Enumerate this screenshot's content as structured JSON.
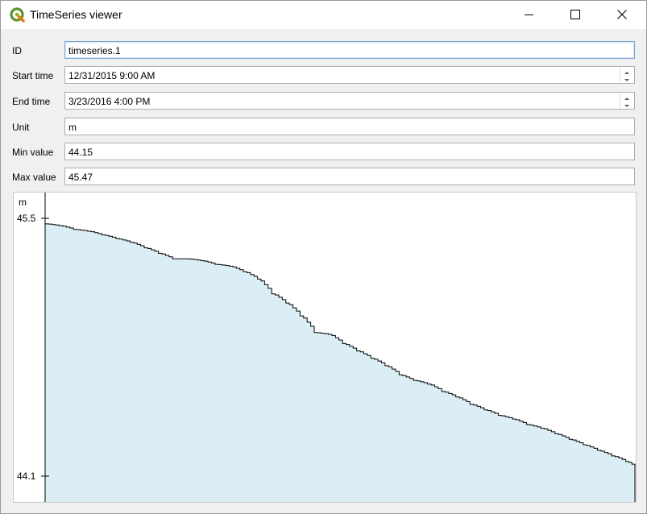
{
  "window": {
    "title": "TimeSeries viewer",
    "icon": "qgis-logo-icon",
    "controls": [
      "minimize-icon",
      "maximize-icon",
      "close-icon"
    ]
  },
  "form": {
    "id": {
      "label": "ID",
      "value": "timeseries.1"
    },
    "start_time": {
      "label": "Start time",
      "value": "12/31/2015 9:00 AM"
    },
    "end_time": {
      "label": "End time",
      "value": "3/23/2016 4:00 PM"
    },
    "unit": {
      "label": "Unit",
      "value": "m"
    },
    "min_value": {
      "label": "Min value",
      "value": "44.15"
    },
    "max_value": {
      "label": "Max value",
      "value": "45.47"
    }
  },
  "colors": {
    "accent": "#4a9a3c",
    "fill": "#dbeef6",
    "line": "#000000",
    "focus_border": "#7aa6d6"
  },
  "chart_data": {
    "type": "area",
    "ylabel": "m",
    "ylim": [
      44.1,
      45.5
    ],
    "yticks": [
      "45.5",
      "44.1"
    ],
    "xlim": [
      "2015-12-31T09:00",
      "2016-03-23T16:00"
    ],
    "step": true,
    "grid": false,
    "x": [
      "2015-12-31T09:00",
      "2016-01-02T09:00",
      "2016-01-04T09:00",
      "2016-01-06T09:00",
      "2016-01-08T09:00",
      "2016-01-10T09:00",
      "2016-01-12T09:00",
      "2016-01-14T09:00",
      "2016-01-16T09:00",
      "2016-01-18T09:00",
      "2016-01-20T09:00",
      "2016-01-22T09:00",
      "2016-01-24T09:00",
      "2016-01-26T09:00",
      "2016-01-28T09:00",
      "2016-01-30T09:00",
      "2016-02-01T09:00",
      "2016-02-03T09:00",
      "2016-02-05T09:00",
      "2016-02-07T09:00",
      "2016-02-09T09:00",
      "2016-02-11T09:00",
      "2016-02-13T09:00",
      "2016-02-15T09:00",
      "2016-02-17T09:00",
      "2016-02-19T09:00",
      "2016-02-21T09:00",
      "2016-02-23T09:00",
      "2016-02-25T09:00",
      "2016-02-27T09:00",
      "2016-02-29T09:00",
      "2016-03-02T09:00",
      "2016-03-04T09:00",
      "2016-03-06T09:00",
      "2016-03-08T09:00",
      "2016-03-10T09:00",
      "2016-03-12T09:00",
      "2016-03-14T09:00",
      "2016-03-16T09:00",
      "2016-03-18T09:00",
      "2016-03-20T09:00",
      "2016-03-22T09:00",
      "2016-03-23T16:00"
    ],
    "y": [
      45.47,
      45.46,
      45.44,
      45.43,
      45.41,
      45.39,
      45.37,
      45.34,
      45.31,
      45.28,
      45.28,
      45.27,
      45.25,
      45.24,
      45.21,
      45.17,
      45.09,
      45.04,
      44.97,
      44.88,
      44.87,
      44.82,
      44.78,
      44.74,
      44.7,
      44.65,
      44.62,
      44.6,
      44.56,
      44.53,
      44.49,
      44.46,
      44.43,
      44.41,
      44.38,
      44.36,
      44.33,
      44.3,
      44.27,
      44.24,
      44.21,
      44.18,
      44.15
    ]
  }
}
